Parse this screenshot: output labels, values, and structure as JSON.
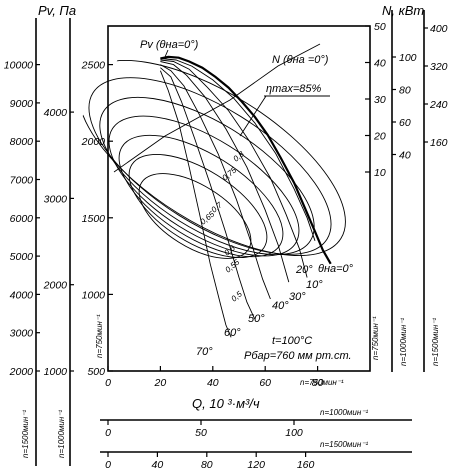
{
  "chart_data": {
    "type": "line",
    "title": "",
    "pressure_axes": {
      "label": "Pv, Па",
      "main": {
        "ticks": [
          500,
          1000,
          1500,
          2000,
          2500
        ],
        "ylim": [
          500,
          2700
        ]
      },
      "n1500": {
        "ticks": [
          2000,
          3000,
          4000,
          5000,
          6000,
          7000,
          8000,
          9000,
          10000
        ],
        "speed_label": "n=1500мин⁻¹"
      },
      "n1000": {
        "ticks": [
          1000,
          2000,
          3000,
          4000
        ],
        "speed_label": "n=1000мин⁻¹"
      },
      "n750": {
        "speed_label": "n=750мин⁻¹"
      }
    },
    "power_axes": {
      "label": "N, кВт",
      "n750": {
        "ticks": [
          10,
          20,
          30,
          40,
          50
        ],
        "speed_label": "n=750мин⁻¹"
      },
      "n1000": {
        "ticks": [
          40,
          60,
          80,
          100
        ],
        "speed_label": "n=1000мин⁻¹"
      },
      "n1500": {
        "ticks": [
          160,
          240,
          320,
          400
        ],
        "speed_label": "n=1500мин⁻¹"
      }
    },
    "flow_axes": {
      "label": "Q, 10 ³·м³/ч",
      "n750": {
        "ticks": [
          0,
          20,
          40,
          60,
          80
        ],
        "speed_label": "n=750мин⁻¹",
        "xlim": [
          0,
          100
        ]
      },
      "n1000": {
        "ticks": [
          0,
          50,
          100
        ],
        "speed_label": "n=1000мин⁻¹"
      },
      "n1500": {
        "ticks": [
          0,
          40,
          80,
          120,
          160
        ],
        "speed_label": "n=1500мин⁻¹"
      }
    },
    "series": [
      {
        "name": "Pv (θна=0°)",
        "x": [
          20,
          23,
          27,
          31,
          36,
          41,
          46,
          51,
          56,
          61,
          66,
          71,
          75,
          79,
          82,
          85
        ],
        "y": [
          2540,
          2550,
          2545,
          2520,
          2480,
          2420,
          2350,
          2260,
          2160,
          2040,
          1890,
          1730,
          1570,
          1410,
          1290,
          1200
        ]
      },
      {
        "name": "N (θна=0°)",
        "x": [
          22,
          40,
          60,
          78,
          85
        ],
        "y": [
          2050,
          2290,
          2460,
          2570,
          2610
        ]
      },
      {
        "name": "20°",
        "x": [
          20,
          26,
          32,
          40,
          48,
          56,
          64,
          71,
          76,
          79
        ],
        "y": [
          2540,
          2530,
          2490,
          2400,
          2280,
          2120,
          1920,
          1690,
          1500,
          1350
        ]
      },
      {
        "name": "30°",
        "x": [
          20,
          25,
          31,
          38,
          46,
          54,
          62,
          68,
          73,
          76
        ],
        "y": [
          2530,
          2520,
          2470,
          2350,
          2200,
          2000,
          1760,
          1520,
          1300,
          1110
        ]
      },
      {
        "name": "40°",
        "x": [
          20,
          25,
          30,
          37,
          45,
          53,
          60,
          65,
          69
        ],
        "y": [
          2520,
          2500,
          2430,
          2290,
          2080,
          1830,
          1550,
          1320,
          1080
        ]
      },
      {
        "name": "50°",
        "x": [
          20,
          24,
          29,
          35,
          42,
          49,
          55,
          59,
          62
        ],
        "y": [
          2500,
          2460,
          2360,
          2170,
          1920,
          1620,
          1320,
          1100,
          970
        ]
      },
      {
        "name": "60°",
        "x": [
          20,
          24,
          28,
          33,
          39,
          45,
          50,
          53,
          56
        ],
        "y": [
          2480,
          2420,
          2260,
          2020,
          1720,
          1400,
          1110,
          950,
          840
        ]
      },
      {
        "name": "70°",
        "x": [
          20,
          23,
          27,
          31,
          35,
          39,
          43,
          45,
          47
        ],
        "y": [
          2460,
          2330,
          2120,
          1830,
          1520,
          1200,
          930,
          800,
          720
        ]
      }
    ],
    "efficiency_contours": [
      {
        "label": "0,8"
      },
      {
        "label": "0,75"
      },
      {
        "label": "0,7"
      },
      {
        "label": "0,65"
      },
      {
        "label": "0,6"
      },
      {
        "label": "0,55"
      },
      {
        "label": "0,5"
      }
    ],
    "annotations": {
      "pv_curve": "Pv (θна=0°)",
      "n_curve": "N (θна =0°)",
      "eta_max": "ηmax=85%",
      "theta_end": "θна=0°",
      "angles": [
        "10°",
        "20°",
        "30°",
        "40°",
        "50°",
        "60°",
        "70°"
      ],
      "temperature": "t=100°C",
      "baro": "Pбар=760 мм рт.ст."
    }
  }
}
